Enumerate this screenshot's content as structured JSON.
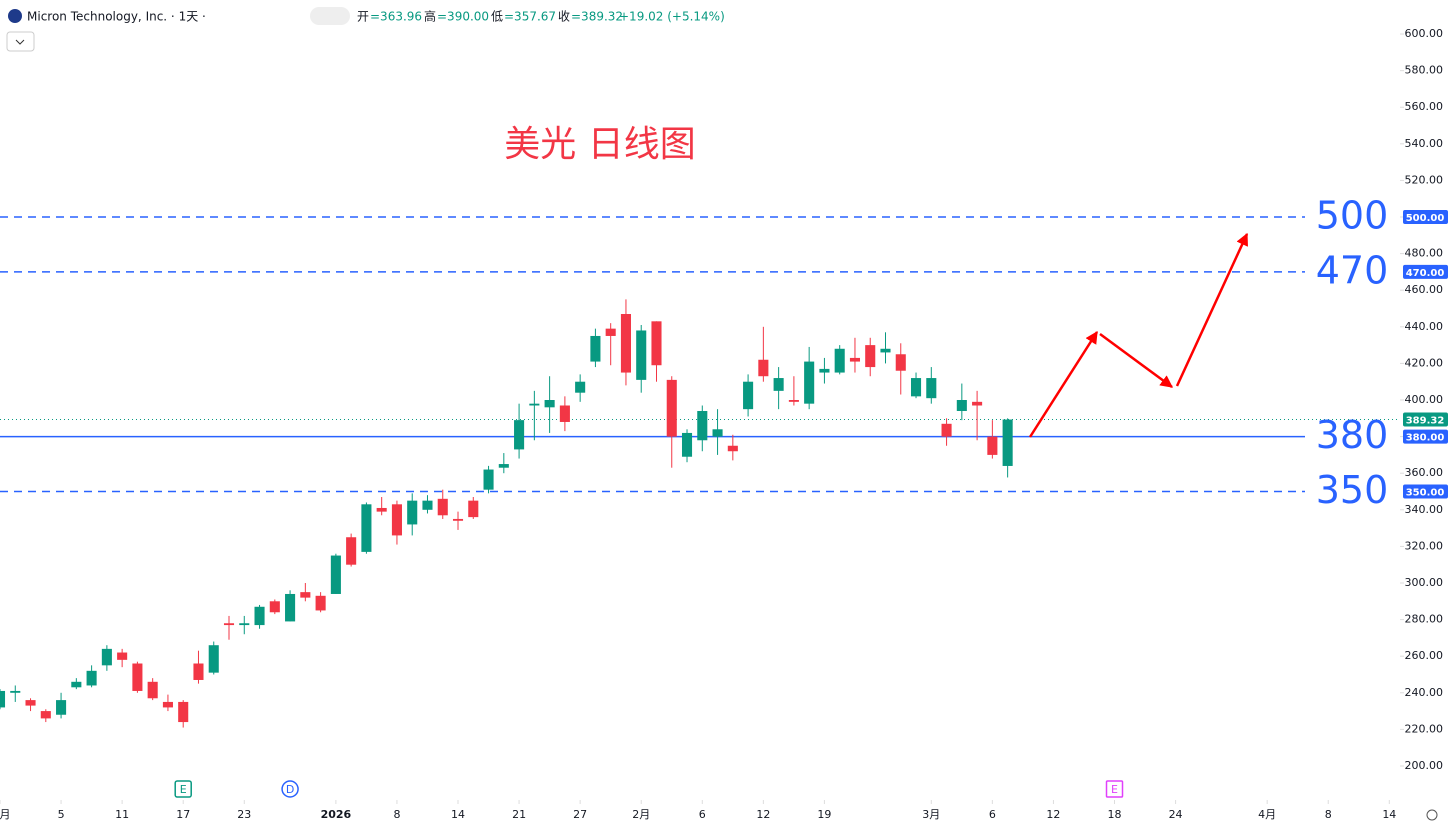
{
  "chart_data": {
    "type": "candlestick",
    "header": {
      "symbol": "Micron Technology, Inc. · 1天 ·",
      "ohlc": [
        {
          "label": "开",
          "value": "=363.96"
        },
        {
          "label": "高",
          "value": "=390.00"
        },
        {
          "label": "低",
          "value": "=357.67"
        },
        {
          "label": "收",
          "value": "=389.32"
        }
      ],
      "change": "+19.02 (+5.14%)"
    },
    "title": "美光 日线图",
    "up_color": "#089981",
    "down_color": "#f23645",
    "x": [
      -4,
      -3,
      -2,
      -1,
      0,
      1,
      2,
      3,
      4,
      5,
      6,
      7,
      8,
      9,
      10,
      11,
      12,
      13,
      14,
      15,
      16,
      17,
      18,
      19,
      20,
      21,
      22,
      23,
      24,
      25,
      26,
      27,
      28,
      29,
      30,
      31,
      32,
      33,
      34,
      35,
      36,
      37,
      38,
      39,
      40,
      41,
      42,
      43,
      44,
      45,
      46,
      47,
      48,
      49,
      50,
      51,
      52,
      53,
      54,
      55,
      56,
      57,
      58,
      59,
      60,
      61,
      62
    ],
    "candles": {
      "open": [
        232,
        240,
        236,
        230,
        228,
        243,
        244,
        255,
        262,
        256,
        246,
        235,
        235,
        256,
        251,
        278,
        277,
        277,
        290,
        279,
        295,
        293,
        294,
        325,
        317,
        341,
        343,
        332,
        340,
        346,
        335,
        345,
        351,
        363,
        373,
        397,
        396,
        397,
        404,
        421,
        439,
        447,
        411,
        443,
        411,
        369,
        378,
        380,
        375,
        395,
        422,
        405,
        400,
        398,
        415,
        415,
        423,
        430,
        426,
        425,
        402,
        401,
        387,
        394,
        399,
        380,
        363.96
      ],
      "high": [
        242,
        244,
        237,
        231,
        240,
        248,
        255,
        266,
        264,
        257,
        248,
        239,
        236,
        263,
        268,
        282,
        282,
        288,
        291,
        296,
        300,
        295,
        316,
        327,
        344,
        347,
        345,
        349,
        348,
        351,
        339,
        347,
        364,
        371,
        398,
        405,
        413,
        402,
        414,
        439,
        442,
        455,
        441,
        443,
        413,
        384,
        397,
        395,
        381,
        414,
        440,
        418,
        413,
        429,
        423,
        430,
        434,
        434,
        437,
        431,
        415,
        418,
        390,
        409,
        405,
        389,
        390
      ],
      "low": [
        231,
        235,
        230,
        224,
        226,
        242,
        243,
        252,
        254,
        240,
        236,
        230,
        221,
        245,
        250,
        269,
        272,
        275,
        283,
        279,
        290,
        284,
        294,
        309,
        316,
        337,
        321,
        326,
        338,
        335,
        329,
        335,
        349,
        360,
        368,
        378,
        382,
        383,
        399,
        418,
        419,
        408,
        404,
        410,
        363,
        366,
        372,
        370,
        367,
        391,
        410,
        395,
        397,
        395,
        409,
        414,
        415,
        413,
        420,
        403,
        401,
        398,
        375,
        389,
        378,
        368,
        357.67
      ],
      "close": [
        241,
        241,
        233,
        226,
        236,
        246,
        252,
        264,
        258,
        241,
        237,
        232,
        224,
        247,
        266,
        277,
        278,
        287,
        284,
        294,
        292,
        285,
        315,
        310,
        343,
        339,
        326,
        345,
        345,
        337,
        334,
        336,
        362,
        365,
        389,
        398,
        400,
        388,
        410,
        435,
        435,
        415,
        438,
        419,
        380,
        382,
        394,
        384,
        372,
        410,
        413,
        412,
        399,
        421,
        417,
        428,
        421,
        418,
        428,
        416,
        412,
        412,
        380,
        400,
        397,
        370,
        389.32
      ]
    },
    "xlim": [
      -4,
      87.7
    ],
    "xticks": [
      {
        "value": -4,
        "label": "月"
      },
      {
        "value": 0,
        "label": "5"
      },
      {
        "value": 4,
        "label": "11"
      },
      {
        "value": 8,
        "label": "17"
      },
      {
        "value": 12,
        "label": "23"
      },
      {
        "value": 18,
        "label": "2026"
      },
      {
        "value": 22,
        "label": "8"
      },
      {
        "value": 26,
        "label": "14"
      },
      {
        "value": 30,
        "label": "21"
      },
      {
        "value": 34,
        "label": "27"
      },
      {
        "value": 38,
        "label": "2月"
      },
      {
        "value": 42,
        "label": "6"
      },
      {
        "value": 46,
        "label": "12"
      },
      {
        "value": 50,
        "label": "19"
      },
      {
        "value": 57,
        "label": "3月"
      },
      {
        "value": 61,
        "label": "6"
      },
      {
        "value": 65,
        "label": "12"
      },
      {
        "value": 69,
        "label": "18"
      },
      {
        "value": 73,
        "label": "24"
      },
      {
        "value": 79,
        "label": "4月"
      },
      {
        "value": 83,
        "label": "8"
      },
      {
        "value": 87,
        "label": "14"
      }
    ],
    "ylim": [
      182.5,
      618.6
    ],
    "yticks": [
      {
        "value": 200,
        "label": "200.00"
      },
      {
        "value": 220,
        "label": "220.00"
      },
      {
        "value": 240,
        "label": "240.00"
      },
      {
        "value": 260,
        "label": "260.00"
      },
      {
        "value": 280,
        "label": "280.00"
      },
      {
        "value": 300,
        "label": "300.00"
      },
      {
        "value": 320,
        "label": "320.00"
      },
      {
        "value": 340,
        "label": "340.00"
      },
      {
        "value": 360,
        "label": "360.00"
      },
      {
        "value": 380,
        "label": "380.00"
      },
      {
        "value": 400,
        "label": "400.00"
      },
      {
        "value": 420,
        "label": "420.00"
      },
      {
        "value": 440,
        "label": "440.00"
      },
      {
        "value": 460,
        "label": "460.00"
      },
      {
        "value": 480,
        "label": "480.00"
      },
      {
        "value": 500,
        "label": "500.00"
      },
      {
        "value": 520,
        "label": "520.00"
      },
      {
        "value": 540,
        "label": "540.00"
      },
      {
        "value": 560,
        "label": "560.00"
      },
      {
        "value": 580,
        "label": "580.00"
      },
      {
        "value": 600,
        "label": "600.00"
      }
    ],
    "hlines": [
      {
        "value": 500,
        "label": "500",
        "tag": "500.00",
        "style": "dashed"
      },
      {
        "value": 470,
        "label": "470",
        "tag": "470.00",
        "style": "dashed"
      },
      {
        "value": 380,
        "label": "380",
        "tag": "380.00",
        "style": "solid"
      },
      {
        "value": 350,
        "label": "350",
        "tag": "350.00",
        "style": "dashed"
      }
    ],
    "hline_color": "#2962ff",
    "events": [
      {
        "x": 8,
        "label": "E",
        "color": "#089981",
        "shape": "flag"
      },
      {
        "x": 15,
        "label": "D",
        "color": "#2962ff",
        "shape": "circle"
      },
      {
        "x": 69,
        "label": "E",
        "color": "#e040fb",
        "shape": "square"
      }
    ]
  }
}
